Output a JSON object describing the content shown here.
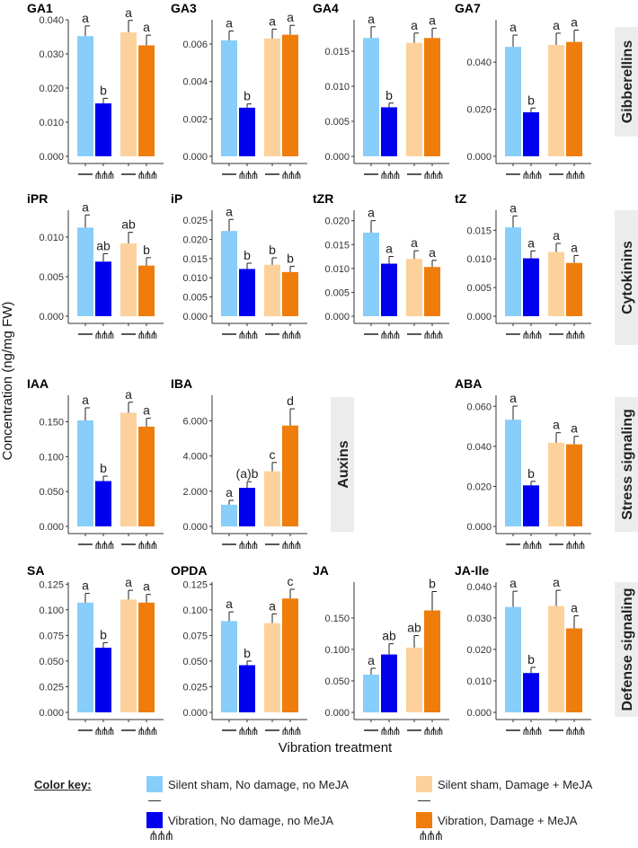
{
  "y_axis_label": "Concentration (ng/mg FW)",
  "x_axis_label": "Vibration treatment",
  "x_tick_symbols": [
    "—",
    "⋔⋔⋔"
  ],
  "colors": {
    "silent_no_damage": "#87cefa",
    "vibration_no_damage": "#0000ee",
    "silent_damage": "#fdd19c",
    "vibration_damage": "#ef7d0c",
    "strip_bg": "#ececec",
    "axis": "#333333",
    "error_bar": "#222222"
  },
  "strips": {
    "gibberellins": "Gibberellins",
    "cytokinins": "Cytokinins",
    "auxins": "Auxins",
    "stress": "Stress signaling",
    "defense": "Defense signaling"
  },
  "color_key": {
    "heading": "Color key:",
    "items": [
      {
        "label": "Silent sham, No damage, no MeJA",
        "symbol": "—"
      },
      {
        "label": "Vibration, No damage, no MeJA",
        "symbol": "⋔⋔⋔"
      },
      {
        "label": "Silent sham, Damage + MeJA",
        "symbol": "—"
      },
      {
        "label": "Vibration, Damage + MeJA",
        "symbol": "⋔⋔⋔"
      }
    ]
  },
  "chart_data": [
    {
      "type": "bar",
      "title": "GA1",
      "ylim": [
        0,
        0.04
      ],
      "ticks": [
        "0.000",
        "0.010",
        "0.020",
        "0.030",
        "0.040"
      ],
      "tick_values": [
        0,
        0.01,
        0.02,
        0.03,
        0.04
      ],
      "values": [
        0.0352,
        0.0155,
        0.0363,
        0.0325
      ],
      "errors": [
        0.003,
        0.0015,
        0.0035,
        0.003
      ],
      "letters": [
        "a",
        "b",
        "a",
        "a"
      ]
    },
    {
      "type": "bar",
      "title": "GA3",
      "ylim": [
        0,
        0.0073
      ],
      "ticks": [
        "0.000",
        "0.002",
        "0.004",
        "0.006"
      ],
      "tick_values": [
        0,
        0.002,
        0.004,
        0.006
      ],
      "values": [
        0.0062,
        0.0026,
        0.0063,
        0.0065
      ],
      "errors": [
        0.0005,
        0.0002,
        0.0005,
        0.0005
      ],
      "letters": [
        "a",
        "b",
        "a",
        "a"
      ]
    },
    {
      "type": "bar",
      "title": "GA4",
      "ylim": [
        0,
        0.0195
      ],
      "ticks": [
        "0.000",
        "0.005",
        "0.010",
        "0.015"
      ],
      "tick_values": [
        0,
        0.005,
        0.01,
        0.015
      ],
      "values": [
        0.0169,
        0.007,
        0.0162,
        0.0169
      ],
      "errors": [
        0.0016,
        0.0006,
        0.0014,
        0.0014
      ],
      "letters": [
        "a",
        "b",
        "a",
        "a"
      ]
    },
    {
      "type": "bar",
      "title": "GA7",
      "ylim": [
        0,
        0.058
      ],
      "ticks": [
        "0.000",
        "0.020",
        "0.040"
      ],
      "tick_values": [
        0,
        0.02,
        0.04
      ],
      "values": [
        0.0465,
        0.0187,
        0.0473,
        0.0486
      ],
      "errors": [
        0.005,
        0.0018,
        0.005,
        0.005
      ],
      "letters": [
        "a",
        "b",
        "a",
        "a"
      ]
    },
    {
      "type": "bar",
      "title": "iPR",
      "ylim": [
        0,
        0.0134
      ],
      "ticks": [
        "0.000",
        "0.005",
        "0.010"
      ],
      "tick_values": [
        0,
        0.005,
        0.01
      ],
      "values": [
        0.0112,
        0.0069,
        0.0092,
        0.0064
      ],
      "errors": [
        0.0016,
        0.001,
        0.0014,
        0.001
      ],
      "letters": [
        "a",
        "ab",
        "ab",
        "b"
      ]
    },
    {
      "type": "bar",
      "title": "iP",
      "ylim": [
        0,
        0.0276
      ],
      "ticks": [
        "0.000",
        "0.005",
        "0.010",
        "0.015",
        "0.020",
        "0.025"
      ],
      "tick_values": [
        0,
        0.005,
        0.01,
        0.015,
        0.02,
        0.025
      ],
      "values": [
        0.0222,
        0.0123,
        0.0134,
        0.0115
      ],
      "errors": [
        0.003,
        0.0015,
        0.0018,
        0.0015
      ],
      "letters": [
        "a",
        "b",
        "b",
        "b"
      ]
    },
    {
      "type": "bar",
      "title": "tZR",
      "ylim": [
        0,
        0.0222
      ],
      "ticks": [
        "0.000",
        "0.005",
        "0.010",
        "0.015",
        "0.020"
      ],
      "tick_values": [
        0,
        0.005,
        0.01,
        0.015,
        0.02
      ],
      "values": [
        0.0175,
        0.011,
        0.012,
        0.0103
      ],
      "errors": [
        0.0025,
        0.0015,
        0.0017,
        0.0014
      ],
      "letters": [
        "a",
        "a",
        "a",
        "a"
      ]
    },
    {
      "type": "bar",
      "title": "tZ",
      "ylim": [
        0,
        0.0185
      ],
      "ticks": [
        "0.000",
        "0.005",
        "0.010",
        "0.015"
      ],
      "tick_values": [
        0,
        0.005,
        0.01,
        0.015
      ],
      "values": [
        0.0155,
        0.0101,
        0.0112,
        0.0093
      ],
      "errors": [
        0.002,
        0.0013,
        0.0015,
        0.0013
      ],
      "letters": [
        "a",
        "a",
        "a",
        "a"
      ]
    },
    {
      "type": "bar",
      "title": "IAA",
      "ylim": [
        0,
        0.188
      ],
      "ticks": [
        "0.000",
        "0.050",
        "0.100",
        "0.150"
      ],
      "tick_values": [
        0,
        0.05,
        0.1,
        0.15
      ],
      "values": [
        0.152,
        0.065,
        0.163,
        0.143
      ],
      "errors": [
        0.018,
        0.007,
        0.015,
        0.012
      ],
      "letters": [
        "a",
        "b",
        "a",
        "a"
      ]
    },
    {
      "type": "bar",
      "title": "IBA",
      "ylim": [
        0,
        7450
      ],
      "ticks": [
        "0.000",
        "2.000",
        "4.000",
        "6.000"
      ],
      "tick_values": [
        0,
        2000,
        4000,
        6000
      ],
      "values": [
        1230,
        2190,
        3130,
        5730
      ],
      "errors": [
        250,
        350,
        500,
        950
      ],
      "letters": [
        "a",
        "(a)b",
        "c",
        "d"
      ]
    },
    {
      "type": "bar",
      "title": "ABA",
      "ylim": [
        0,
        0.0655
      ],
      "ticks": [
        "0.000",
        "0.020",
        "0.040",
        "0.060"
      ],
      "tick_values": [
        0,
        0.02,
        0.04,
        0.06
      ],
      "values": [
        0.0533,
        0.0205,
        0.0418,
        0.041
      ],
      "errors": [
        0.0068,
        0.002,
        0.005,
        0.004
      ],
      "letters": [
        "a",
        "b",
        "a",
        "a"
      ]
    },
    {
      "type": "bar",
      "title": "SA",
      "ylim": [
        0,
        0.127
      ],
      "ticks": [
        "0.000",
        "0.025",
        "0.050",
        "0.075",
        "0.100",
        "0.125"
      ],
      "tick_values": [
        0,
        0.025,
        0.05,
        0.075,
        0.1,
        0.125
      ],
      "values": [
        0.107,
        0.063,
        0.11,
        0.107
      ],
      "errors": [
        0.009,
        0.005,
        0.009,
        0.008
      ],
      "letters": [
        "a",
        "b",
        "a",
        "a"
      ]
    },
    {
      "type": "bar",
      "title": "OPDA",
      "ylim": [
        0,
        0.127
      ],
      "ticks": [
        "0.000",
        "0.025",
        "0.050",
        "0.075",
        "0.100",
        "0.125"
      ],
      "tick_values": [
        0,
        0.025,
        0.05,
        0.075,
        0.1,
        0.125
      ],
      "values": [
        0.089,
        0.046,
        0.087,
        0.111
      ],
      "errors": [
        0.009,
        0.004,
        0.009,
        0.009
      ],
      "letters": [
        "a",
        "b",
        "a",
        "c"
      ]
    },
    {
      "type": "bar",
      "title": "JA",
      "ylim": [
        0,
        0.207
      ],
      "ticks": [
        "0.000",
        "0.050",
        "0.100",
        "0.150"
      ],
      "tick_values": [
        0,
        0.05,
        0.1,
        0.15
      ],
      "values": [
        0.06,
        0.092,
        0.103,
        0.162
      ],
      "errors": [
        0.01,
        0.017,
        0.019,
        0.03
      ],
      "letters": [
        "a",
        "ab",
        "ab",
        "b"
      ]
    },
    {
      "type": "bar",
      "title": "JA-Ile",
      "ylim": [
        0,
        0.0414
      ],
      "ticks": [
        "0.000",
        "0.010",
        "0.020",
        "0.030",
        "0.040"
      ],
      "tick_values": [
        0,
        0.01,
        0.02,
        0.03,
        0.04
      ],
      "values": [
        0.0335,
        0.0125,
        0.0338,
        0.0267
      ],
      "errors": [
        0.005,
        0.0018,
        0.005,
        0.004
      ],
      "letters": [
        "a",
        "b",
        "a",
        "a"
      ]
    }
  ]
}
